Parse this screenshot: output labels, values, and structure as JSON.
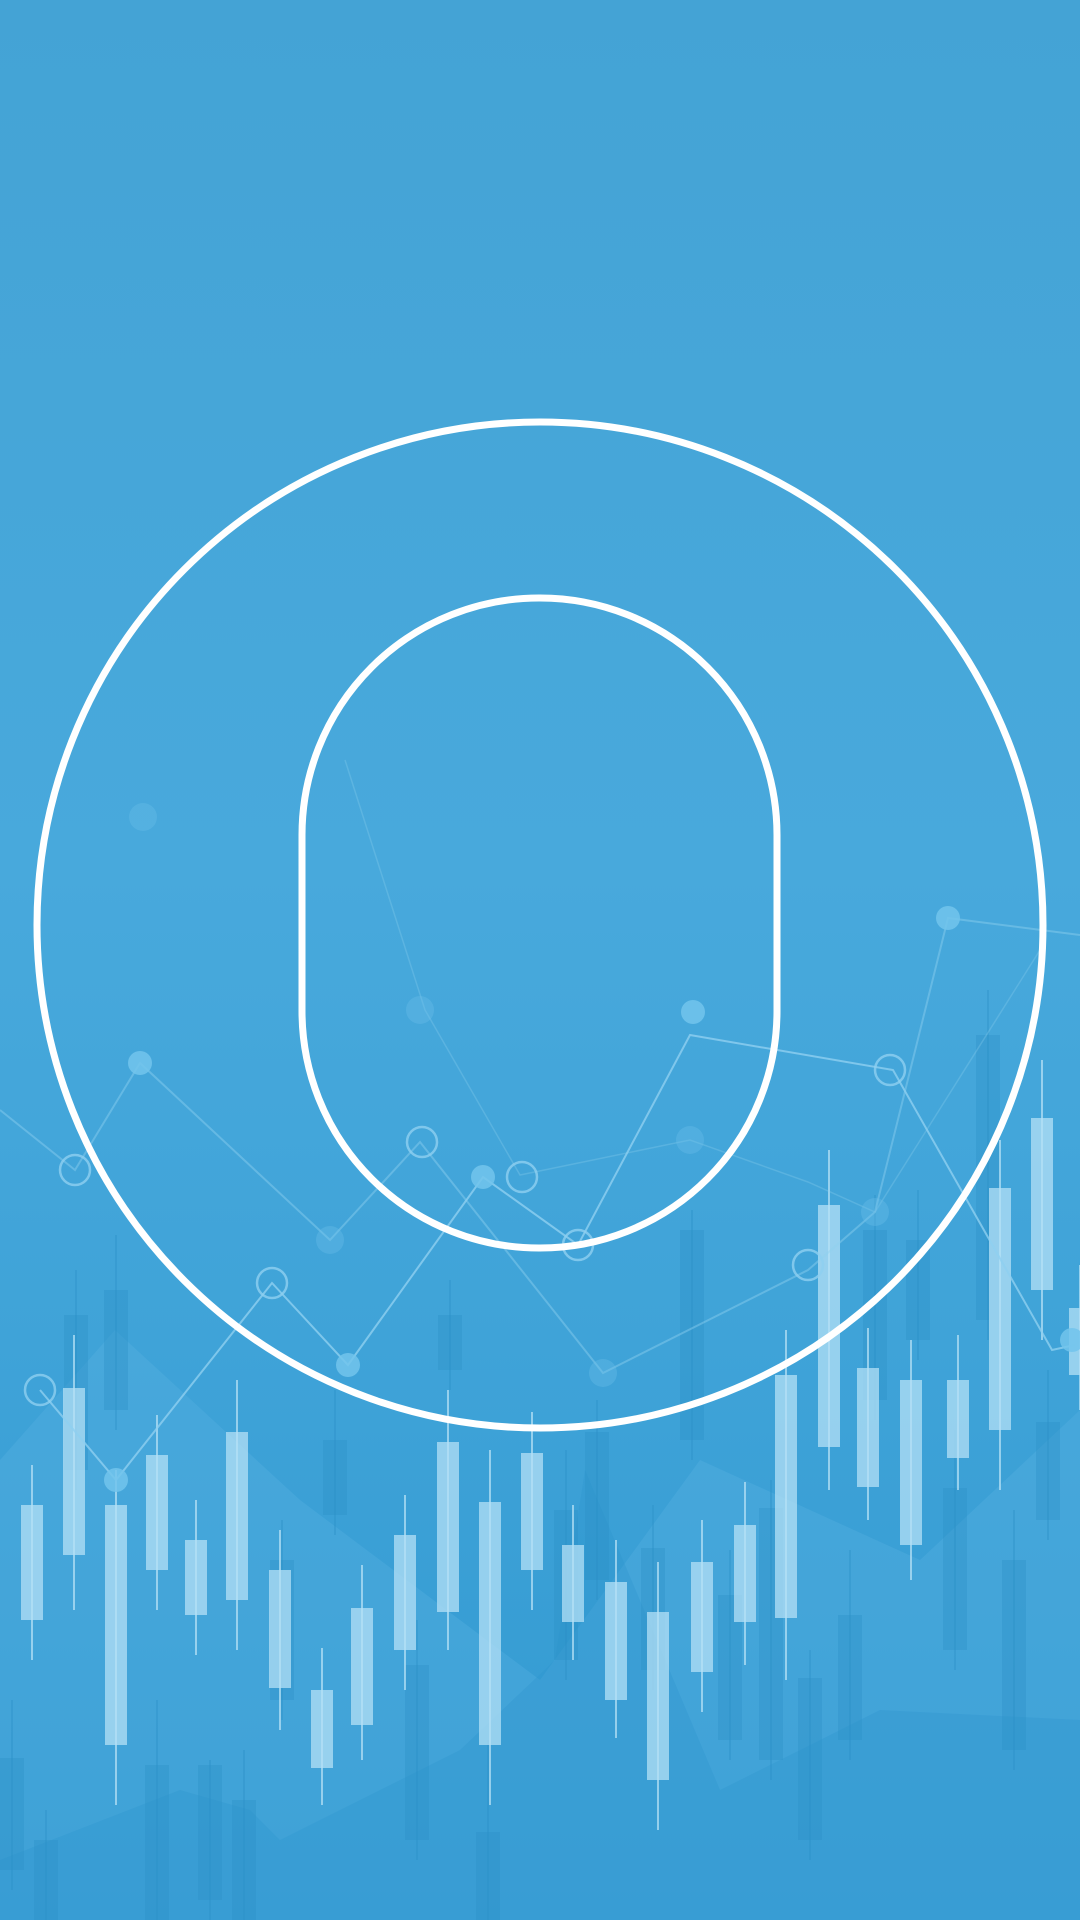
{
  "screen": {
    "background_gradient": [
      "#44a3d5",
      "#48a9dc",
      "#3199d1"
    ],
    "ring_color": "#ffffff",
    "chart_accent": "#b4e0f5"
  },
  "logo": {
    "icon": "ring-logo-icon",
    "inner_shape": "rounded-capsule"
  },
  "background": {
    "pattern": "candlestick-chart-illustration"
  }
}
